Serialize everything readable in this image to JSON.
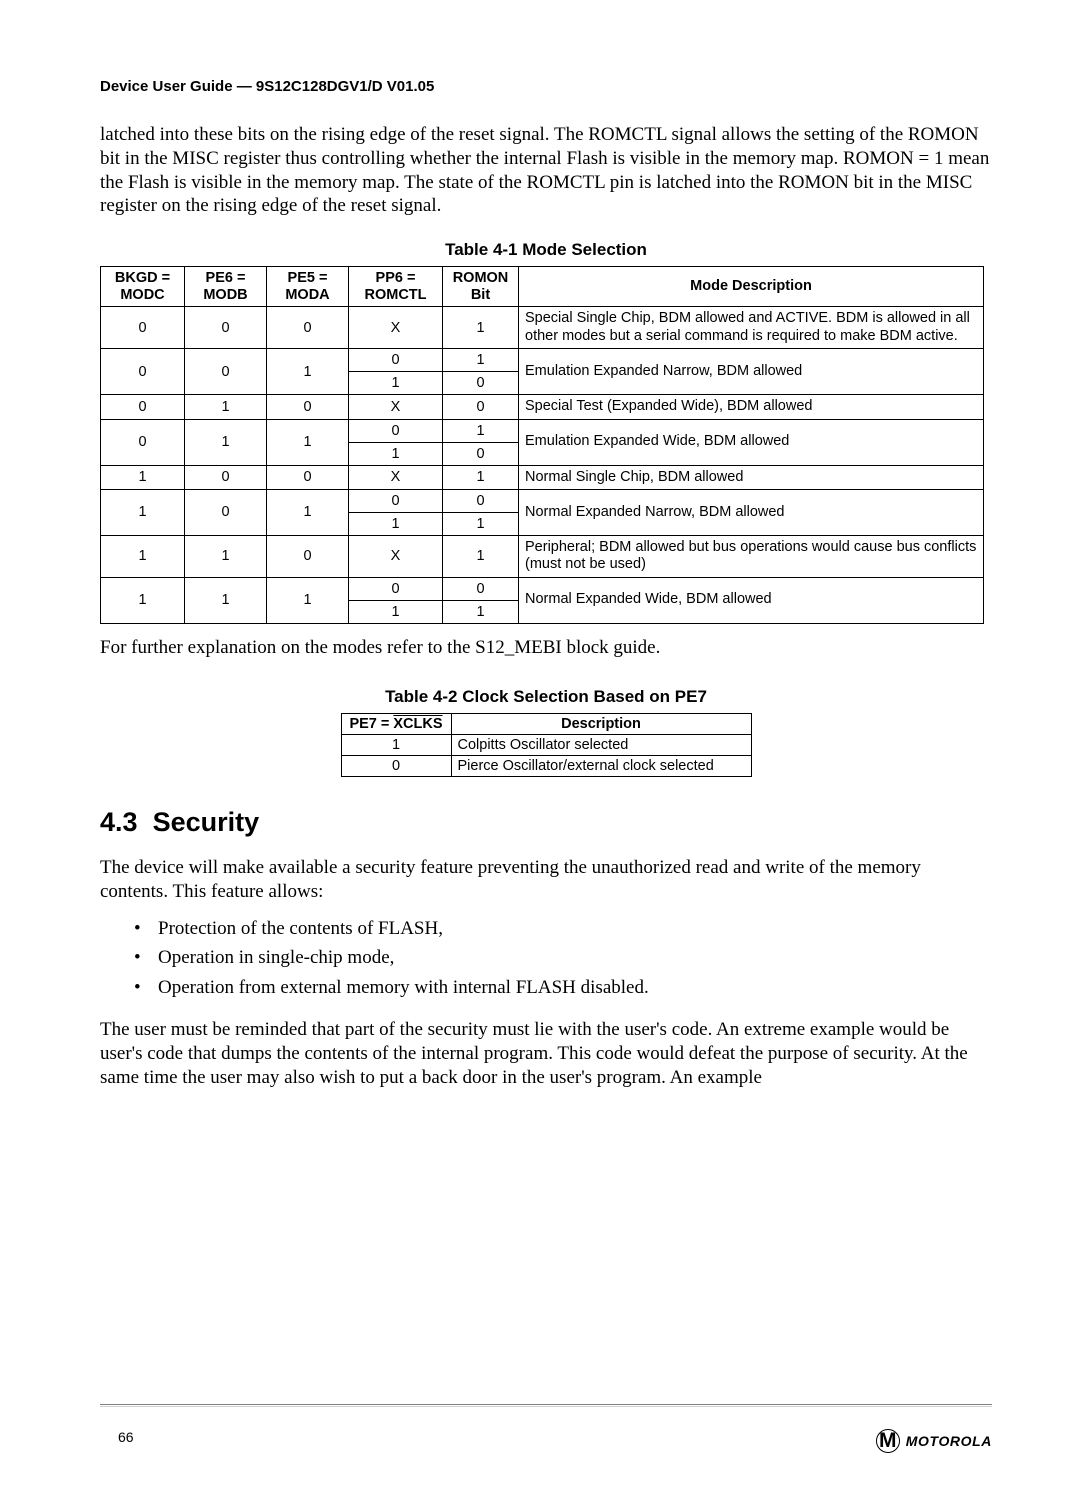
{
  "doc_header": "Device User Guide — 9S12C128DGV1/D V01.05",
  "intro_paragraph": "latched into these bits on the rising edge of the reset signal. The ROMCTL signal allows the setting of the ROMON bit in the MISC register thus controlling whether the internal Flash is visible in the memory map. ROMON = 1 mean the Flash is visible in the memory map. The state of the ROMCTL pin is latched into the ROMON bit in the MISC register on the rising edge of the reset signal.",
  "table1": {
    "caption": "Table 4-1 Mode Selection",
    "headers": {
      "bkgd": "BKGD =\nMODC",
      "pe6": "PE6 =\nMODB",
      "pe5": "PE5 =\nMODA",
      "pp6": "PP6 =\nROMCTL",
      "romon": "ROMON\nBit",
      "desc": "Mode Description"
    },
    "rows": [
      {
        "bkgd": "0",
        "pe6": "0",
        "pe5": "0",
        "pp6": "X",
        "romon": "1",
        "desc": "Special Single Chip, BDM allowed and ACTIVE. BDM is allowed in all other modes but a serial command is required to make BDM active.",
        "span": 1
      },
      {
        "bkgd": "0",
        "pe6": "0",
        "pe5": "1",
        "sub": [
          [
            "0",
            "1"
          ],
          [
            "1",
            "0"
          ]
        ],
        "desc": "Emulation Expanded Narrow, BDM allowed"
      },
      {
        "bkgd": "0",
        "pe6": "1",
        "pe5": "0",
        "pp6": "X",
        "romon": "0",
        "desc": "Special Test (Expanded Wide), BDM allowed",
        "span": 1
      },
      {
        "bkgd": "0",
        "pe6": "1",
        "pe5": "1",
        "sub": [
          [
            "0",
            "1"
          ],
          [
            "1",
            "0"
          ]
        ],
        "desc": "Emulation Expanded Wide, BDM allowed"
      },
      {
        "bkgd": "1",
        "pe6": "0",
        "pe5": "0",
        "pp6": "X",
        "romon": "1",
        "desc": "Normal Single Chip, BDM allowed",
        "span": 1
      },
      {
        "bkgd": "1",
        "pe6": "0",
        "pe5": "1",
        "sub": [
          [
            "0",
            "0"
          ],
          [
            "1",
            "1"
          ]
        ],
        "desc": "Normal Expanded Narrow, BDM allowed"
      },
      {
        "bkgd": "1",
        "pe6": "1",
        "pe5": "0",
        "pp6": "X",
        "romon": "1",
        "desc": "Peripheral; BDM allowed but bus operations would cause bus conflicts (must not be used)",
        "span": 1
      },
      {
        "bkgd": "1",
        "pe6": "1",
        "pe5": "1",
        "sub": [
          [
            "0",
            "0"
          ],
          [
            "1",
            "1"
          ]
        ],
        "desc": "Normal Expanded Wide, BDM allowed"
      }
    ]
  },
  "after_table1": "For further explanation on the modes refer to the S12_MEBI block guide.",
  "table2": {
    "caption": "Table 4-2  Clock Selection Based on PE7",
    "header_pe7_prefix": "PE7 = ",
    "header_pe7_over": "XCLKS",
    "header_desc": "Description",
    "rows": [
      {
        "pe7": "1",
        "desc": "Colpitts Oscillator selected"
      },
      {
        "pe7": "0",
        "desc": "Pierce Oscillator/external clock selected"
      }
    ]
  },
  "section": {
    "number": "4.3",
    "title": "Security",
    "p1": "The device will make available a security feature preventing the unauthorized read and write of the memory contents. This feature allows:",
    "bullets": [
      "Protection of the contents of FLASH,",
      "Operation in single-chip mode,",
      "Operation from external memory with internal FLASH disabled."
    ],
    "p2": "The user must be reminded that part of the security must lie with the user's code. An extreme example would be user's code that dumps the contents of the internal program. This code would defeat the purpose of security. At the same time the user may also wish to put a back door in the user's program. An example"
  },
  "footer": {
    "page_number": "66",
    "logo_letter": "M",
    "logo_word": "MOTOROLA"
  },
  "colors": {
    "text": "#000000",
    "background": "#ffffff",
    "rule": "#808080",
    "rule_shadow": "#cfcfcf",
    "border": "#000000"
  },
  "fonts": {
    "body": "Times New Roman",
    "headings_tables": "Arial",
    "body_size_pt": 14,
    "caption_size_pt": 13,
    "table_size_pt": 11,
    "section_heading_pt": 20,
    "doc_header_pt": 11
  }
}
